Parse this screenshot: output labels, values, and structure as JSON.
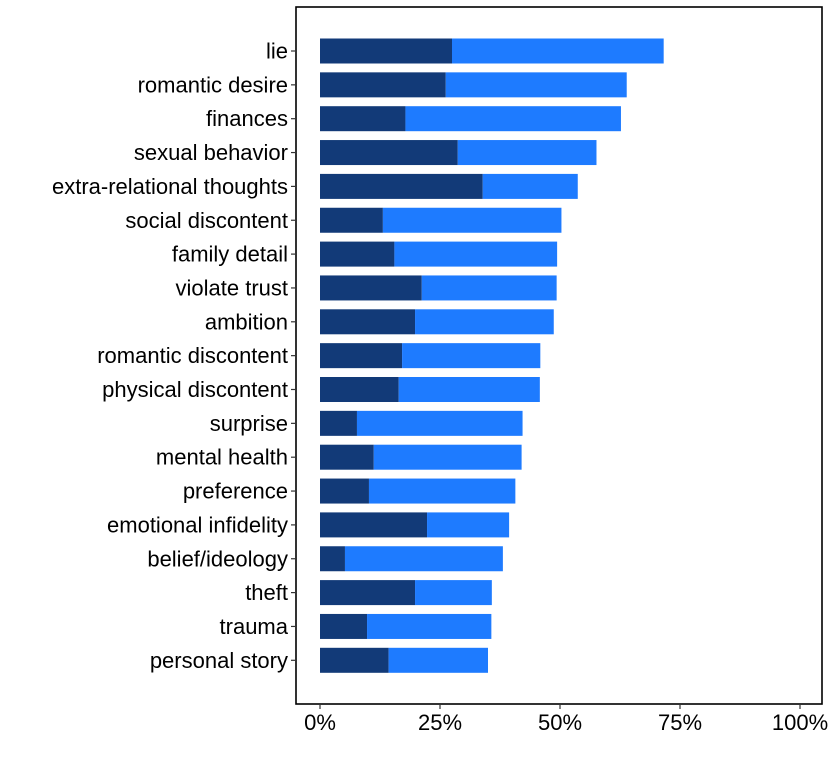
{
  "chart_data": {
    "type": "bar",
    "orientation": "horizontal",
    "stacked": true,
    "categories": [
      "lie",
      "romantic desire",
      "finances",
      "sexual behavior",
      "extra-relational thoughts",
      "social discontent",
      "family detail",
      "violate trust",
      "ambition",
      "romantic discontent",
      "physical discontent",
      "surprise",
      "mental health",
      "preference",
      "emotional infidelity",
      "belief/ideology",
      "theft",
      "trauma",
      "personal story"
    ],
    "series": [
      {
        "color": "#123a78",
        "values": [
          27.5,
          26.2,
          17.8,
          28.7,
          33.9,
          13.1,
          15.5,
          21.2,
          19.8,
          17.1,
          16.4,
          7.7,
          11.2,
          10.2,
          22.3,
          5.2,
          19.8,
          9.8,
          14.3
        ]
      },
      {
        "color": "#1e7bff",
        "values": [
          44.1,
          37.7,
          44.9,
          28.9,
          19.8,
          37.2,
          33.9,
          28.1,
          28.9,
          28.8,
          29.4,
          34.5,
          30.8,
          30.5,
          17.1,
          32.9,
          16.0,
          25.9,
          20.7
        ]
      }
    ],
    "xlim": [
      0,
      100
    ],
    "x_ticks": [
      "0%",
      "25%",
      "50%",
      "75%",
      "100%"
    ],
    "x_tick_values": [
      0,
      25,
      50,
      75,
      100
    ],
    "xlabel": "",
    "ylabel": "",
    "grid": false,
    "legend": "none"
  }
}
